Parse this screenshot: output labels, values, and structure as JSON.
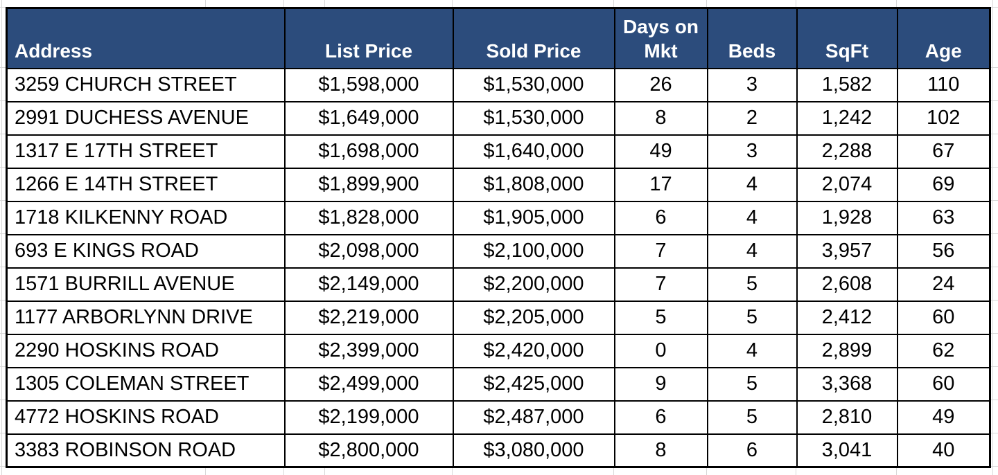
{
  "colors": {
    "header-bg": "#2C4C7C",
    "header-text": "#FFFFFF",
    "border": "#000000",
    "gridline": "#D8D8D8"
  },
  "table": {
    "columns": [
      {
        "label": "Address"
      },
      {
        "label": "List Price"
      },
      {
        "label": "Sold Price"
      },
      {
        "label": "Days on Mkt"
      },
      {
        "label": "Beds"
      },
      {
        "label": "SqFt"
      },
      {
        "label": "Age"
      }
    ],
    "rows": [
      {
        "address": "3259 CHURCH STREET",
        "list_price": "$1,598,000",
        "sold_price": "$1,530,000",
        "days_on_mkt": "26",
        "beds": "3",
        "sqft": "1,582",
        "age": "110"
      },
      {
        "address": "2991 DUCHESS AVENUE",
        "list_price": "$1,649,000",
        "sold_price": "$1,530,000",
        "days_on_mkt": "8",
        "beds": "2",
        "sqft": "1,242",
        "age": "102"
      },
      {
        "address": "1317 E 17TH STREET",
        "list_price": "$1,698,000",
        "sold_price": "$1,640,000",
        "days_on_mkt": "49",
        "beds": "3",
        "sqft": "2,288",
        "age": "67"
      },
      {
        "address": "1266 E 14TH STREET",
        "list_price": "$1,899,900",
        "sold_price": "$1,808,000",
        "days_on_mkt": "17",
        "beds": "4",
        "sqft": "2,074",
        "age": "69"
      },
      {
        "address": "1718 KILKENNY ROAD",
        "list_price": "$1,828,000",
        "sold_price": "$1,905,000",
        "days_on_mkt": "6",
        "beds": "4",
        "sqft": "1,928",
        "age": "63"
      },
      {
        "address": "693 E KINGS ROAD",
        "list_price": "$2,098,000",
        "sold_price": "$2,100,000",
        "days_on_mkt": "7",
        "beds": "4",
        "sqft": "3,957",
        "age": "56"
      },
      {
        "address": "1571 BURRILL AVENUE",
        "list_price": "$2,149,000",
        "sold_price": "$2,200,000",
        "days_on_mkt": "7",
        "beds": "5",
        "sqft": "2,608",
        "age": "24"
      },
      {
        "address": "1177 ARBORLYNN DRIVE",
        "list_price": "$2,219,000",
        "sold_price": "$2,205,000",
        "days_on_mkt": "5",
        "beds": "5",
        "sqft": "2,412",
        "age": "60"
      },
      {
        "address": "2290 HOSKINS ROAD",
        "list_price": "$2,399,000",
        "sold_price": "$2,420,000",
        "days_on_mkt": "0",
        "beds": "4",
        "sqft": "2,899",
        "age": "62"
      },
      {
        "address": "1305 COLEMAN STREET",
        "list_price": "$2,499,000",
        "sold_price": "$2,425,000",
        "days_on_mkt": "9",
        "beds": "5",
        "sqft": "3,368",
        "age": "60"
      },
      {
        "address": "4772 HOSKINS ROAD",
        "list_price": "$2,199,000",
        "sold_price": "$2,487,000",
        "days_on_mkt": "6",
        "beds": "5",
        "sqft": "2,810",
        "age": "49"
      },
      {
        "address": "3383 ROBINSON ROAD",
        "list_price": "$2,800,000",
        "sold_price": "$3,080,000",
        "days_on_mkt": "8",
        "beds": "6",
        "sqft": "3,041",
        "age": "40"
      }
    ]
  }
}
